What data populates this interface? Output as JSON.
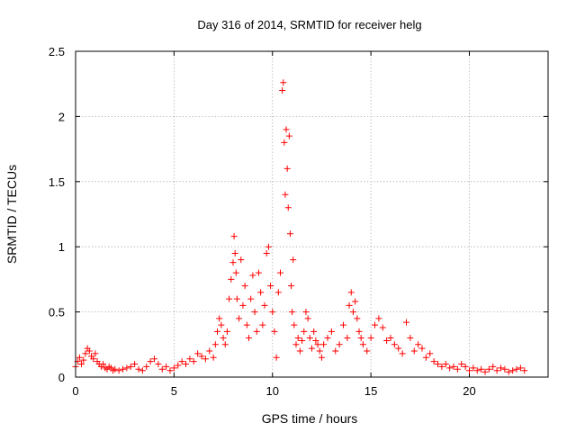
{
  "chart_data": {
    "type": "scatter",
    "title": "Day 316 of 2014, SRMTID for receiver helg",
    "xlabel": "GPS time / hours",
    "ylabel": "SRMTID / TECUs",
    "xlim": [
      0,
      24
    ],
    "ylim": [
      0,
      2.5
    ],
    "x_ticks": [
      0,
      5,
      10,
      15,
      20
    ],
    "x_tick_labels": [
      "0",
      "5",
      "10",
      "15",
      "20"
    ],
    "y_ticks": [
      0,
      0.5,
      1,
      1.5,
      2,
      2.5
    ],
    "y_tick_labels": [
      "0",
      "0.5",
      "1",
      "1.5",
      "2",
      "2.5"
    ],
    "grid": true,
    "marker": "+",
    "series": [
      {
        "name": "SRMTID",
        "color": "#ff0000",
        "x": [
          0.0,
          0.1,
          0.2,
          0.3,
          0.4,
          0.5,
          0.6,
          0.7,
          0.8,
          0.9,
          1.0,
          1.1,
          1.2,
          1.3,
          1.4,
          1.5,
          1.6,
          1.7,
          1.8,
          1.9,
          2.0,
          2.2,
          2.4,
          2.6,
          2.8,
          3.0,
          3.2,
          3.4,
          3.6,
          3.8,
          4.0,
          4.2,
          4.4,
          4.6,
          4.8,
          5.0,
          5.2,
          5.4,
          5.6,
          5.8,
          6.0,
          6.2,
          6.4,
          6.6,
          6.8,
          7.0,
          7.1,
          7.2,
          7.3,
          7.4,
          7.5,
          7.6,
          7.7,
          7.8,
          7.9,
          8.0,
          8.05,
          8.1,
          8.15,
          8.2,
          8.3,
          8.4,
          8.5,
          8.6,
          8.7,
          8.8,
          8.9,
          9.0,
          9.1,
          9.2,
          9.3,
          9.4,
          9.5,
          9.6,
          9.7,
          9.8,
          9.9,
          10.0,
          10.1,
          10.2,
          10.3,
          10.4,
          10.5,
          10.55,
          10.6,
          10.65,
          10.7,
          10.75,
          10.8,
          10.85,
          10.9,
          10.95,
          11.0,
          11.05,
          11.1,
          11.2,
          11.3,
          11.4,
          11.5,
          11.6,
          11.7,
          11.8,
          11.9,
          12.0,
          12.1,
          12.2,
          12.3,
          12.4,
          12.5,
          12.6,
          12.8,
          13.0,
          13.2,
          13.4,
          13.6,
          13.8,
          13.9,
          14.0,
          14.1,
          14.2,
          14.3,
          14.4,
          14.5,
          14.6,
          14.8,
          15.0,
          15.2,
          15.4,
          15.6,
          15.8,
          16.0,
          16.2,
          16.4,
          16.6,
          16.8,
          17.0,
          17.2,
          17.4,
          17.6,
          17.8,
          18.0,
          18.2,
          18.4,
          18.6,
          18.8,
          19.0,
          19.2,
          19.4,
          19.6,
          19.8,
          20.0,
          20.2,
          20.4,
          20.6,
          20.8,
          21.0,
          21.2,
          21.4,
          21.6,
          21.8,
          22.0,
          22.2,
          22.4,
          22.6,
          22.8
        ],
        "y": [
          0.08,
          0.12,
          0.15,
          0.1,
          0.13,
          0.18,
          0.22,
          0.2,
          0.16,
          0.14,
          0.18,
          0.12,
          0.1,
          0.08,
          0.1,
          0.07,
          0.06,
          0.08,
          0.07,
          0.05,
          0.06,
          0.05,
          0.06,
          0.07,
          0.08,
          0.1,
          0.06,
          0.05,
          0.08,
          0.12,
          0.14,
          0.1,
          0.06,
          0.08,
          0.05,
          0.07,
          0.09,
          0.12,
          0.1,
          0.14,
          0.12,
          0.18,
          0.16,
          0.14,
          0.2,
          0.15,
          0.25,
          0.35,
          0.45,
          0.4,
          0.3,
          0.25,
          0.35,
          0.6,
          0.75,
          0.88,
          1.08,
          0.95,
          0.8,
          0.6,
          0.45,
          0.9,
          0.55,
          0.7,
          0.4,
          0.3,
          0.6,
          0.78,
          0.5,
          0.35,
          0.8,
          0.65,
          0.4,
          0.55,
          0.95,
          1.0,
          0.7,
          0.5,
          0.35,
          0.15,
          0.65,
          0.8,
          2.2,
          2.26,
          1.8,
          1.4,
          1.9,
          1.6,
          1.3,
          1.85,
          1.1,
          0.7,
          0.5,
          0.9,
          0.4,
          0.25,
          0.3,
          0.2,
          0.28,
          0.35,
          0.5,
          0.45,
          0.3,
          0.22,
          0.35,
          0.28,
          0.25,
          0.2,
          0.15,
          0.25,
          0.3,
          0.35,
          0.2,
          0.25,
          0.4,
          0.3,
          0.55,
          0.65,
          0.5,
          0.58,
          0.45,
          0.35,
          0.3,
          0.25,
          0.2,
          0.3,
          0.4,
          0.45,
          0.38,
          0.28,
          0.3,
          0.25,
          0.22,
          0.18,
          0.42,
          0.3,
          0.2,
          0.25,
          0.22,
          0.15,
          0.18,
          0.12,
          0.1,
          0.08,
          0.1,
          0.07,
          0.08,
          0.06,
          0.1,
          0.08,
          0.05,
          0.07,
          0.05,
          0.06,
          0.04,
          0.06,
          0.08,
          0.05,
          0.07,
          0.06,
          0.04,
          0.05,
          0.06,
          0.07,
          0.05
        ]
      }
    ]
  }
}
